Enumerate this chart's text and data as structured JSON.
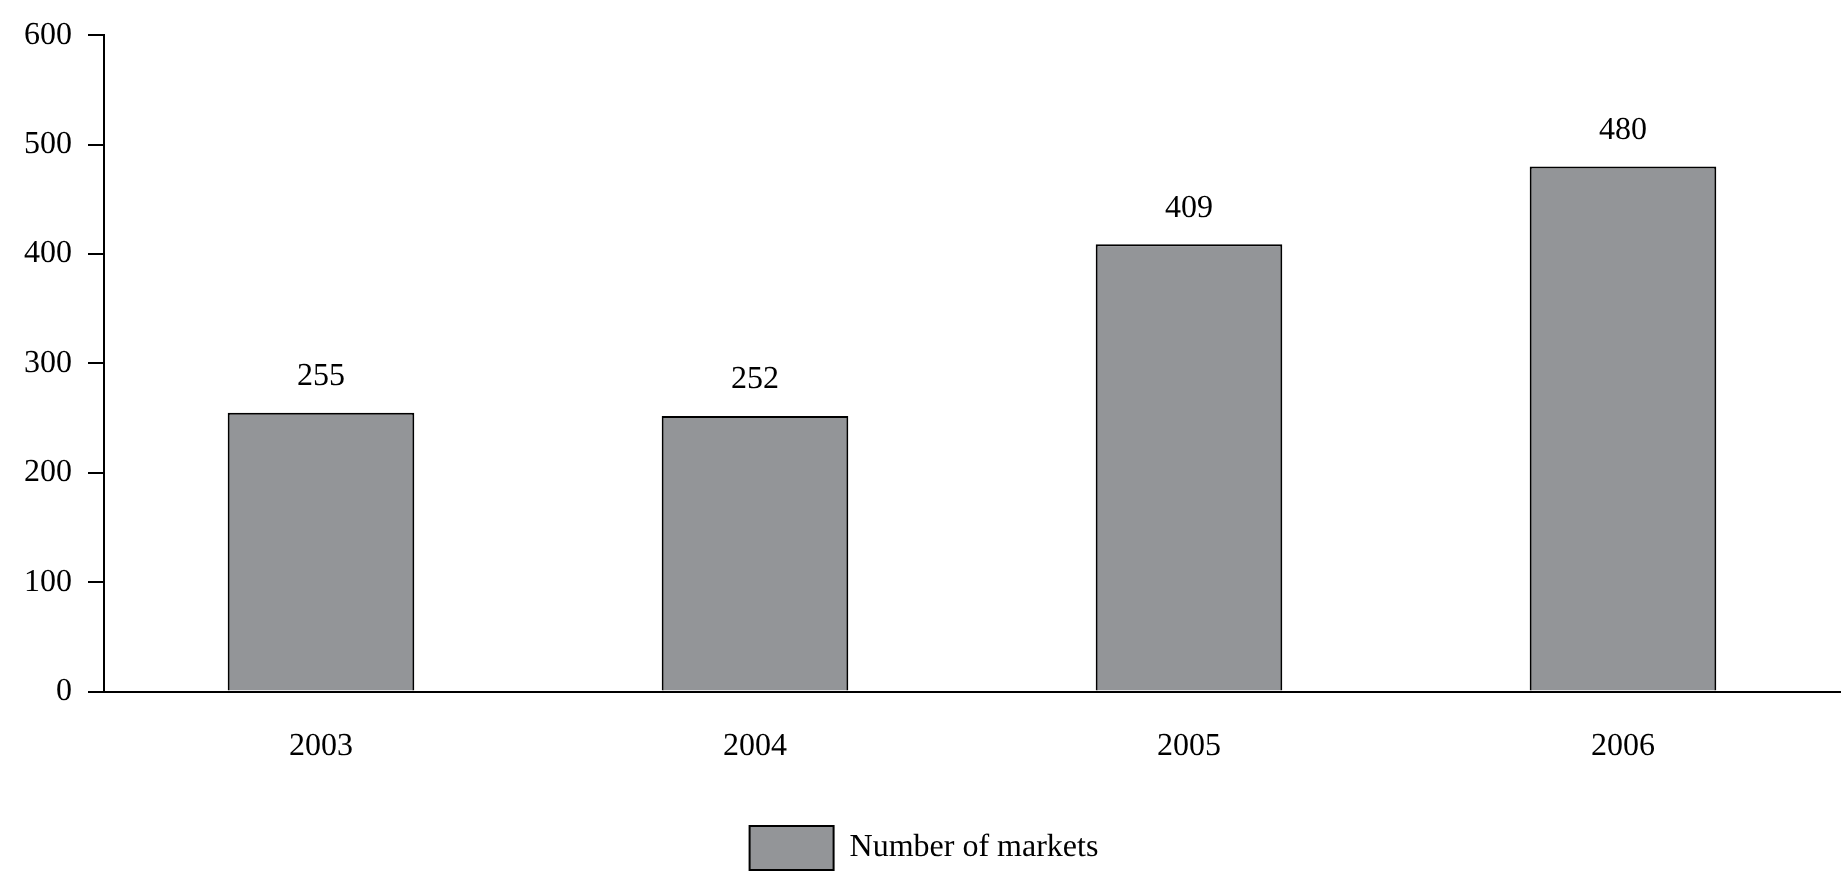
{
  "chart_data": {
    "type": "bar",
    "categories": [
      "2003",
      "2004",
      "2005",
      "2006"
    ],
    "series": [
      {
        "name": "Number of markets",
        "color": "#939598",
        "values": [
          255,
          252,
          409,
          480
        ]
      }
    ],
    "ylim": [
      0,
      600
    ],
    "yticks": [
      0,
      100,
      200,
      300,
      400,
      500,
      600
    ],
    "grid": false,
    "legend": "bottom",
    "data_labels": true
  }
}
